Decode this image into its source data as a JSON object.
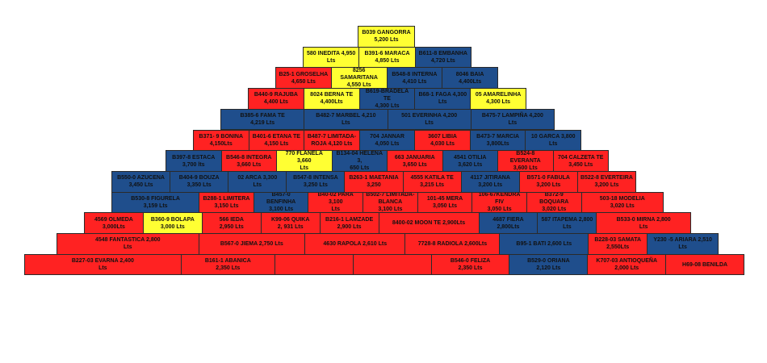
{
  "colors": {
    "red": "#ff2222",
    "blue": "#1f4e8c",
    "yellow": "#ffff33"
  },
  "rows": [
    {
      "cells": [
        {
          "text": "B039 GANGORRA\n5,200 Lts",
          "color": "yellow"
        }
      ]
    },
    {
      "cells": [
        {
          "text": "580 INEDITA   4,950\nLts",
          "color": "yellow"
        },
        {
          "text": "B391-6 MARACA\n4,850 Lts",
          "color": "yellow"
        },
        {
          "text": "B611-8 EMBANHA\n4,720 Lts",
          "color": "blue"
        }
      ]
    },
    {
      "cells": [
        {
          "text": "B25-1 GROSELHA\n4,650 Lts",
          "color": "red"
        },
        {
          "text": "8256 SAMARITANA\n4,550 Lts",
          "color": "yellow"
        },
        {
          "text": "B548-8 INTERNA\n4,410 Lts",
          "color": "blue"
        },
        {
          "text": "8046 BAIA   4,400Lts",
          "color": "blue"
        }
      ]
    },
    {
      "cells": [
        {
          "text": "B440-9 RAJUBA\n4,400 Lts",
          "color": "red"
        },
        {
          "text": "8024 BERNA TE\n4,400Lts",
          "color": "yellow"
        },
        {
          "text": "B619-BRADELA TE\n4,300 Lts",
          "color": "blue"
        },
        {
          "text": "B68-1 FAGA   4,300\nLts",
          "color": "blue"
        },
        {
          "text": "05 AMARELINHA\n4,300 Lts",
          "color": "yellow"
        }
      ]
    },
    {
      "cells": [
        {
          "text": "B385-6 FAMA TE\n4,219 Lts",
          "color": "blue"
        },
        {
          "text": "B482-7 MARBEL   4,210\nLts",
          "color": "blue"
        },
        {
          "text": "501 EVERINHA   4,200\nLts",
          "color": "blue"
        },
        {
          "text": "B475-7 LAMPIÑA   4,200\nLts",
          "color": "blue"
        }
      ]
    },
    {
      "cells": [
        {
          "text": "B371- 9 BONINA\n4,150Lts",
          "color": "red"
        },
        {
          "text": "B401-6 ETANA TE\n4,150 Lts",
          "color": "red"
        },
        {
          "text": "B487-7 LIMITADA-\nROJA   4,120 Lts",
          "color": "red"
        },
        {
          "text": "704 JANNAR\n4,050 Lts",
          "color": "blue"
        },
        {
          "text": "3607 LIBIA\n4,030 Lts",
          "color": "red"
        },
        {
          "text": "B473-7 MARCIA\n3,800Lts",
          "color": "blue"
        },
        {
          "text": "10 GARCA   3,800\nLts",
          "color": "blue"
        }
      ]
    },
    {
      "cells": [
        {
          "text": "B397-8 ESTACA\n3,700 lts",
          "color": "blue"
        },
        {
          "text": "B546-8 INTEGRA\n3,660 Lts",
          "color": "red"
        },
        {
          "text": "770 FLANELA   3,660\nLts",
          "color": "yellow"
        },
        {
          "text": "B134-04 HELENA   3,\n650   Lts",
          "color": "blue"
        },
        {
          "text": "663 JANUARIA\n3,650 Lts",
          "color": "red"
        },
        {
          "text": "4541 OTILIA\n3,620 Lts",
          "color": "blue"
        },
        {
          "text": "B524-8 EVERANTA\n3,600 Lts",
          "color": "red"
        },
        {
          "text": "704 CALZETA TE\n3,450 Lts",
          "color": "red"
        }
      ]
    },
    {
      "cells": [
        {
          "text": "B550-0 AZUCENA\n3,450 Lts",
          "color": "blue"
        },
        {
          "text": "B404-9 BOUZA\n3,350 Lts",
          "color": "blue"
        },
        {
          "text": "02 ARCA   3,300\nLts",
          "color": "blue"
        },
        {
          "text": "B547-8 INTENSA\n3,250 Lts",
          "color": "blue"
        },
        {
          "text": "B263-1 MAETANIA\n3,250",
          "color": "red"
        },
        {
          "text": "4555 KATILA TE\n3,215 Lts",
          "color": "red"
        },
        {
          "text": "4117 JITIRANA\n3,200 Lts",
          "color": "blue"
        },
        {
          "text": "B571-0 FABULA\n3,200 Lts",
          "color": "red"
        },
        {
          "text": "B522-8 EVERTEIRA\n3,200 Lts",
          "color": "red"
        }
      ]
    },
    {
      "cells": [
        {
          "text": "B530-8 FIGURELA\n3,159 Lts",
          "color": "blue"
        },
        {
          "text": "B288-1 LIMITERA\n3,150 Lts",
          "color": "red"
        },
        {
          "text": "B457-0 BENFINHA\n3,100 Lts",
          "color": "blue"
        },
        {
          "text": "B40-02 PARA   3,100\nLts",
          "color": "red"
        },
        {
          "text": "B502-7 LIMITADA-\nBLANCA\n3,100 Lts",
          "color": "red"
        },
        {
          "text": "101-45 MERA\n3,050 Lts",
          "color": "red"
        },
        {
          "text": "106-67KENDRA FIV\n3,050 Lts",
          "color": "red"
        },
        {
          "text": "B372-9 BOQUARA\n3,020 Lts",
          "color": "red"
        },
        {
          "text": "503-18 MODELIA\n3,020 Lts",
          "color": "red"
        }
      ]
    },
    {
      "cells": [
        {
          "text": "4569 OLMEDA\n3,000Lts",
          "color": "red"
        },
        {
          "text": "B360-9 BOLAPA\n3,000 Lts",
          "color": "yellow"
        },
        {
          "text": "566 IEDA\n2,950 Lts",
          "color": "red"
        },
        {
          "text": "K99-06 QUIKA\n2, 931 Lts",
          "color": "red"
        },
        {
          "text": "B216-1 LAMZADE\n2,900 Lts",
          "color": "red"
        },
        {
          "text": "8400-02 MOON TE   2,900Lts",
          "color": "red"
        },
        {
          "text": "4687 FIERA\n2,800Lts",
          "color": "blue"
        },
        {
          "text": "587 ITAPEMA   2,800 Lts",
          "color": "blue"
        },
        {
          "text": "B533-0 MIRNA   2,800\nLts",
          "color": "red"
        }
      ]
    },
    {
      "cells": [
        {
          "text": "4548 FANTASTICA   2,800\nLts",
          "color": "red"
        },
        {
          "text": "B567-0 JIEMA   2,750 Lts",
          "color": "red"
        },
        {
          "text": "4630 RAPOLA   2,610 Lts",
          "color": "red"
        },
        {
          "text": "7728-8 RADIOLA   2,600Lts",
          "color": "red"
        },
        {
          "text": "B95-1 BATI   2,600 Lts",
          "color": "blue"
        },
        {
          "text": "B228-03 SAMATA\n2,550Lts",
          "color": "red"
        },
        {
          "text": "Y230 -5 ARIARA   2,510 Lts",
          "color": "blue"
        }
      ]
    },
    {
      "cells": [
        {
          "text": "B227-03 EVARNA   2,400\nLts",
          "color": "red"
        },
        {
          "text": "B161-1 ABANICA\n2,350 Lts",
          "color": "red"
        },
        {
          "text": "",
          "color": "red"
        },
        {
          "text": "",
          "color": "red"
        },
        {
          "text": "B546-0 FELIZA\n2,350 Lts",
          "color": "red"
        },
        {
          "text": "B529-0 ORIANA\n2,120 Lts",
          "color": "blue"
        },
        {
          "text": "K707-03 ANTIOQUEÑA\n2,000 Lts",
          "color": "red"
        },
        {
          "text": "H69-08 BENILDA",
          "color": "red"
        }
      ]
    }
  ]
}
